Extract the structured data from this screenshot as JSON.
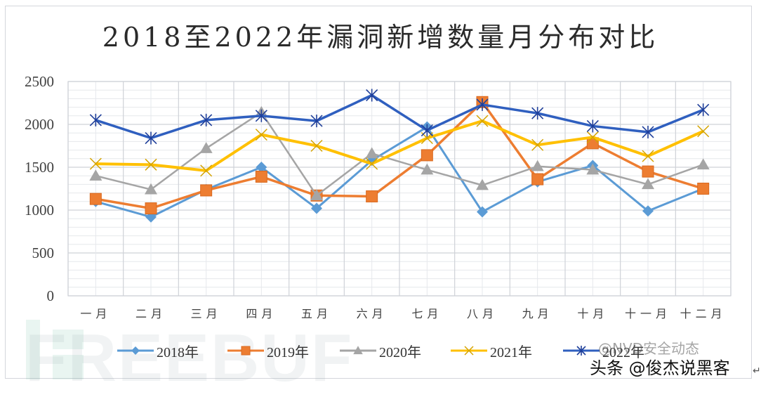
{
  "title": "2018至2022年漏洞新增数量月分布对比",
  "chart_data": {
    "type": "line",
    "title": "2018至2022年漏洞新增数量月分布对比",
    "xlabel": "",
    "ylabel": "",
    "ylim": [
      0,
      2500
    ],
    "yticks": [
      0,
      500,
      1000,
      1500,
      2000,
      2500
    ],
    "grid": true,
    "legend_position": "bottom",
    "categories": [
      "一月",
      "二月",
      "三月",
      "四月",
      "五月",
      "六月",
      "七月",
      "八月",
      "九月",
      "十月",
      "十一月",
      "十二月"
    ],
    "series": [
      {
        "name": "2018年",
        "color": "#5b9bd5",
        "marker": "diamond",
        "values": [
          1100,
          920,
          1240,
          1500,
          1020,
          1580,
          1970,
          980,
          1330,
          1520,
          990,
          1250
        ]
      },
      {
        "name": "2019年",
        "color": "#ed7d31",
        "marker": "square",
        "values": [
          1130,
          1020,
          1230,
          1390,
          1170,
          1160,
          1640,
          2260,
          1360,
          1780,
          1450,
          1250
        ]
      },
      {
        "name": "2020年",
        "color": "#a5a5a5",
        "marker": "triangle",
        "values": [
          1400,
          1240,
          1720,
          2140,
          1170,
          1660,
          1470,
          1290,
          1510,
          1470,
          1300,
          1530
        ]
      },
      {
        "name": "2021年",
        "color": "#ffc000",
        "marker": "x",
        "values": [
          1540,
          1530,
          1460,
          1880,
          1750,
          1540,
          1840,
          2040,
          1760,
          1850,
          1630,
          1920
        ]
      },
      {
        "name": "2022年",
        "color": "#2f5fbf",
        "marker": "star",
        "values": [
          2050,
          1840,
          2050,
          2100,
          2040,
          2340,
          1930,
          2230,
          2130,
          1980,
          1910,
          2170
        ]
      }
    ]
  },
  "watermarks": {
    "freebuf": "FREEBUF",
    "toutiao": "头条 @俊杰说黑客",
    "nvd": "@NVD安全动态"
  }
}
